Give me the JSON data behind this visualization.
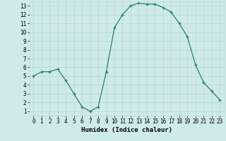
{
  "x": [
    0,
    1,
    2,
    3,
    4,
    5,
    6,
    7,
    8,
    9,
    10,
    11,
    12,
    13,
    14,
    15,
    16,
    17,
    18,
    19,
    20,
    21,
    22,
    23
  ],
  "y": [
    5.0,
    5.5,
    5.5,
    5.8,
    4.5,
    3.0,
    1.5,
    1.0,
    1.5,
    5.5,
    10.5,
    12.0,
    13.0,
    13.3,
    13.2,
    13.2,
    12.8,
    12.3,
    11.0,
    9.5,
    6.3,
    4.3,
    3.3,
    2.3
  ],
  "xlabel": "Humidex (Indice chaleur)",
  "xlim": [
    -0.5,
    23.5
  ],
  "ylim": [
    0.5,
    13.5
  ],
  "yticks": [
    1,
    2,
    3,
    4,
    5,
    6,
    7,
    8,
    9,
    10,
    11,
    12,
    13
  ],
  "xticks": [
    0,
    1,
    2,
    3,
    4,
    5,
    6,
    7,
    8,
    9,
    10,
    11,
    12,
    13,
    14,
    15,
    16,
    17,
    18,
    19,
    20,
    21,
    22,
    23
  ],
  "line_color": "#2d7d6e",
  "marker": "+",
  "bg_color": "#ceeaea",
  "grid_color": "#b8d8d8",
  "label_fontsize": 6.5,
  "tick_fontsize": 5.5
}
